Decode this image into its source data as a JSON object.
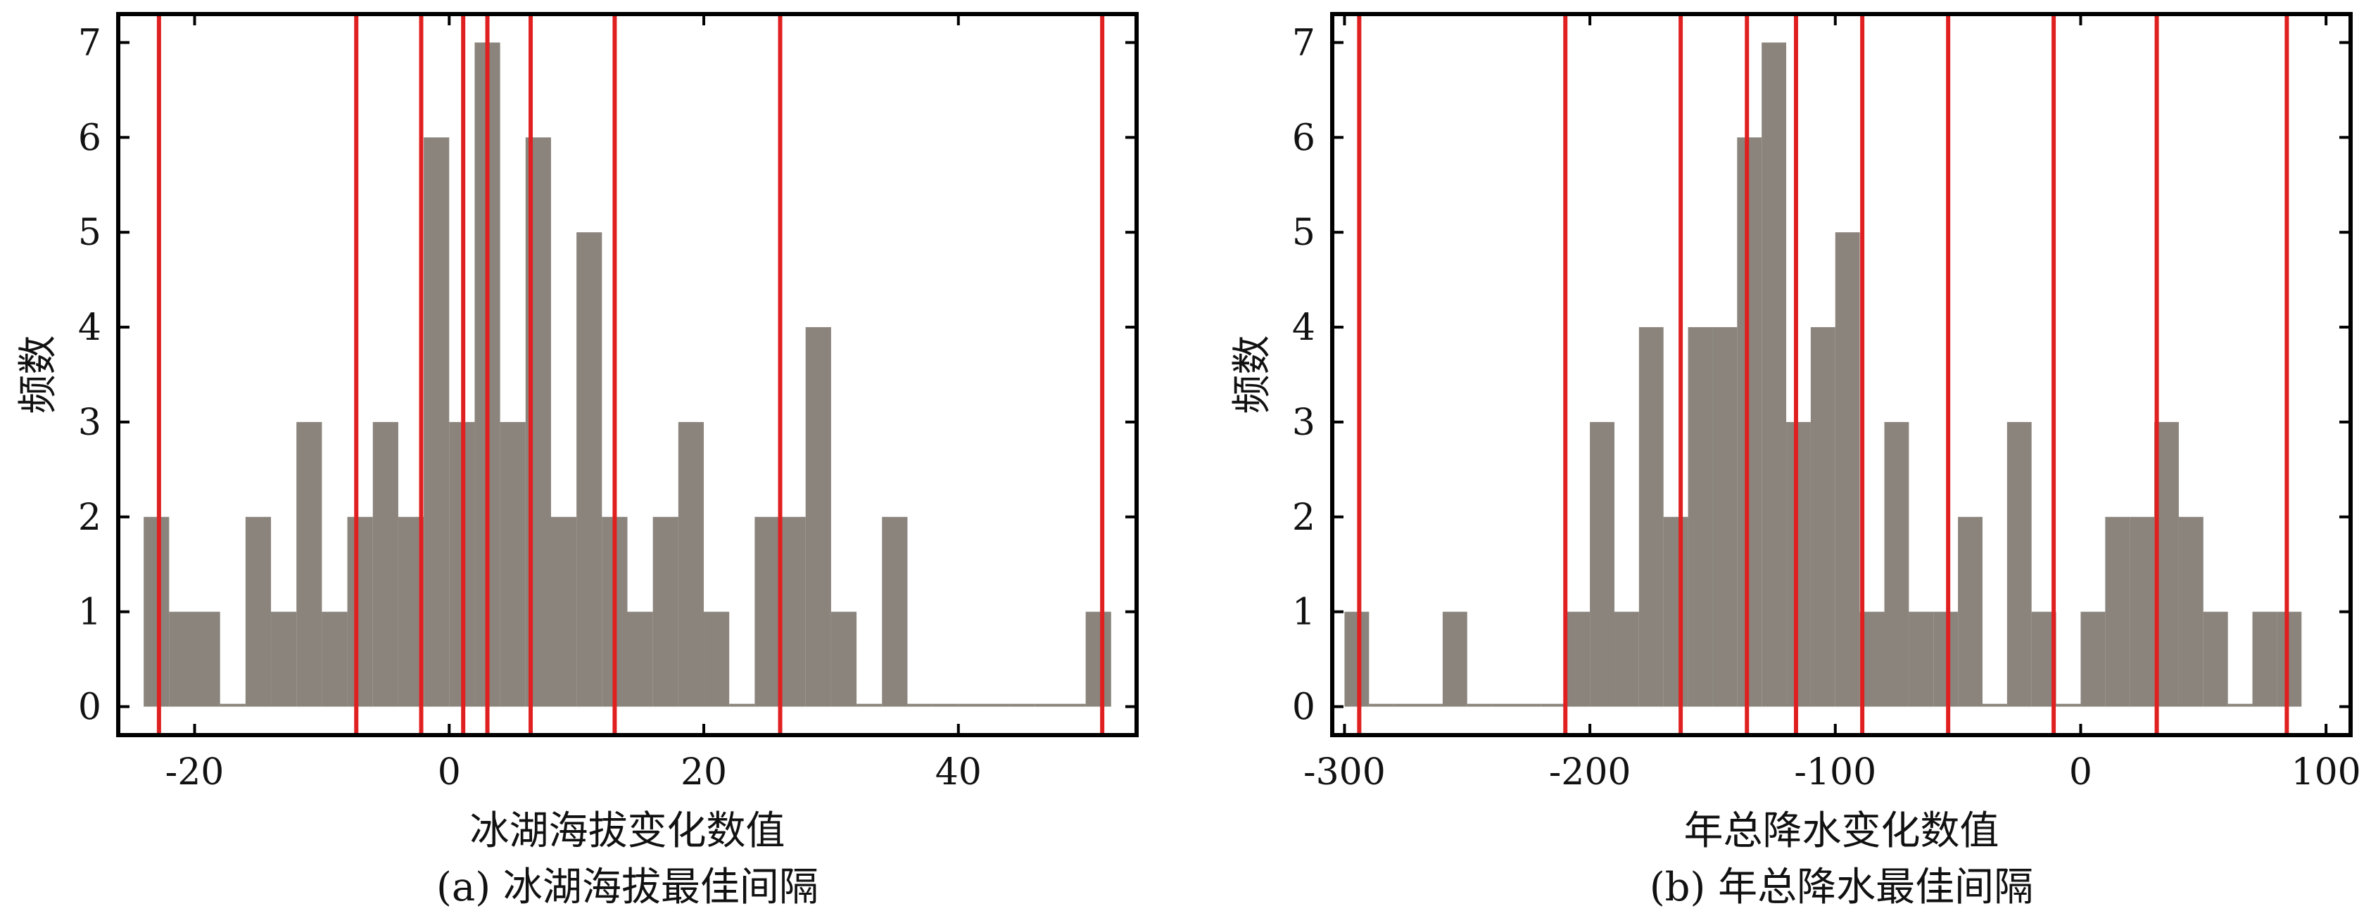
{
  "chart_data": [
    {
      "type": "bar",
      "subplot": "a",
      "xlabel": "冰湖海拔变化数值",
      "ylabel": "频数",
      "caption": "(a) 冰湖海拔最佳间隔",
      "xlim": [
        -26,
        54
      ],
      "ylim": [
        -0.3,
        7.3
      ],
      "xticks": [
        -20,
        0,
        20,
        40
      ],
      "yticks": [
        0,
        1,
        2,
        3,
        4,
        5,
        6,
        7
      ],
      "bin_width": 2,
      "bins": [
        {
          "x0": -24,
          "count": 2
        },
        {
          "x0": -22,
          "count": 1
        },
        {
          "x0": -20,
          "count": 1
        },
        {
          "x0": -18,
          "count": 0
        },
        {
          "x0": -16,
          "count": 2
        },
        {
          "x0": -14,
          "count": 1
        },
        {
          "x0": -12,
          "count": 3
        },
        {
          "x0": -10,
          "count": 1
        },
        {
          "x0": -8,
          "count": 2
        },
        {
          "x0": -6,
          "count": 3
        },
        {
          "x0": -4,
          "count": 2
        },
        {
          "x0": -2,
          "count": 6
        },
        {
          "x0": 0,
          "count": 3
        },
        {
          "x0": 2,
          "count": 7
        },
        {
          "x0": 4,
          "count": 3
        },
        {
          "x0": 6,
          "count": 6
        },
        {
          "x0": 8,
          "count": 2
        },
        {
          "x0": 10,
          "count": 5
        },
        {
          "x0": 12,
          "count": 2
        },
        {
          "x0": 14,
          "count": 1
        },
        {
          "x0": 16,
          "count": 2
        },
        {
          "x0": 18,
          "count": 3
        },
        {
          "x0": 20,
          "count": 1
        },
        {
          "x0": 22,
          "count": 0
        },
        {
          "x0": 24,
          "count": 2
        },
        {
          "x0": 26,
          "count": 2
        },
        {
          "x0": 28,
          "count": 4
        },
        {
          "x0": 30,
          "count": 1
        },
        {
          "x0": 32,
          "count": 0
        },
        {
          "x0": 34,
          "count": 2
        },
        {
          "x0": 36,
          "count": 0
        },
        {
          "x0": 38,
          "count": 0
        },
        {
          "x0": 40,
          "count": 0
        },
        {
          "x0": 42,
          "count": 0
        },
        {
          "x0": 44,
          "count": 0
        },
        {
          "x0": 46,
          "count": 0
        },
        {
          "x0": 48,
          "count": 0
        },
        {
          "x0": 50,
          "count": 1
        }
      ],
      "breaks": [
        -22.8,
        -7.3,
        -2.2,
        1.1,
        3.0,
        6.4,
        13.0,
        26.0,
        51.3
      ],
      "bar_color": "#8a847c",
      "break_color": "#e02020"
    },
    {
      "type": "bar",
      "subplot": "b",
      "xlabel": "年总降水变化数值",
      "ylabel": "频数",
      "caption": "(b) 年总降水最佳间隔",
      "xlim": [
        -305,
        110
      ],
      "ylim": [
        -0.3,
        7.3
      ],
      "xticks": [
        -300,
        -200,
        -100,
        0,
        100
      ],
      "yticks": [
        0,
        1,
        2,
        3,
        4,
        5,
        6,
        7
      ],
      "bin_width": 10,
      "bins": [
        {
          "x0": -300,
          "count": 1
        },
        {
          "x0": -290,
          "count": 0
        },
        {
          "x0": -280,
          "count": 0
        },
        {
          "x0": -270,
          "count": 0
        },
        {
          "x0": -260,
          "count": 1
        },
        {
          "x0": -250,
          "count": 0
        },
        {
          "x0": -240,
          "count": 0
        },
        {
          "x0": -230,
          "count": 0
        },
        {
          "x0": -220,
          "count": 0
        },
        {
          "x0": -210,
          "count": 1
        },
        {
          "x0": -200,
          "count": 3
        },
        {
          "x0": -190,
          "count": 1
        },
        {
          "x0": -180,
          "count": 4
        },
        {
          "x0": -170,
          "count": 2
        },
        {
          "x0": -160,
          "count": 4
        },
        {
          "x0": -150,
          "count": 4
        },
        {
          "x0": -140,
          "count": 6
        },
        {
          "x0": -130,
          "count": 7
        },
        {
          "x0": -120,
          "count": 3
        },
        {
          "x0": -110,
          "count": 4
        },
        {
          "x0": -100,
          "count": 5
        },
        {
          "x0": -90,
          "count": 1
        },
        {
          "x0": -80,
          "count": 3
        },
        {
          "x0": -70,
          "count": 1
        },
        {
          "x0": -60,
          "count": 1
        },
        {
          "x0": -50,
          "count": 2
        },
        {
          "x0": -40,
          "count": 0
        },
        {
          "x0": -30,
          "count": 3
        },
        {
          "x0": -20,
          "count": 1
        },
        {
          "x0": -10,
          "count": 0
        },
        {
          "x0": 0,
          "count": 1
        },
        {
          "x0": 10,
          "count": 2
        },
        {
          "x0": 20,
          "count": 2
        },
        {
          "x0": 30,
          "count": 3
        },
        {
          "x0": 40,
          "count": 2
        },
        {
          "x0": 50,
          "count": 1
        },
        {
          "x0": 60,
          "count": 0
        },
        {
          "x0": 70,
          "count": 1
        },
        {
          "x0": 80,
          "count": 1
        }
      ],
      "breaks": [
        -294,
        -210,
        -163,
        -136,
        -116,
        -89,
        -54,
        -11,
        31,
        84
      ],
      "bar_color": "#8a847c",
      "break_color": "#e02020"
    }
  ]
}
